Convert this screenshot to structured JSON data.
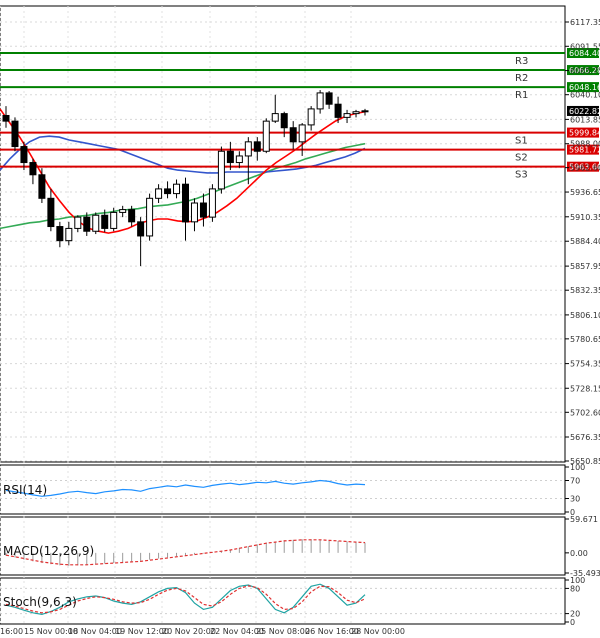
{
  "chart_data": {
    "type": "candlestick",
    "price_ticks": [
      "6117.35",
      "6091.55",
      "6065.75",
      "6040.10",
      "6013.85",
      "5988.00",
      "5962.60",
      "5936.65",
      "5910.35",
      "5884.40",
      "5857.95",
      "5832.35",
      "5806.10",
      "5780.65",
      "5754.35",
      "5728.15",
      "5702.60",
      "5676.35",
      "5650.85"
    ],
    "ylim": [
      5650.85,
      6117.35
    ],
    "time_labels": [
      "16:00",
      "15 Nov 00:00",
      "18 Nov 04:00",
      "19 Nov 12:00",
      "20 Nov 20:00",
      "22 Nov 04:00",
      "25 Nov 08:00",
      "26 Nov 16:00",
      "28 Nov 00:00"
    ],
    "levels": [
      {
        "name": "R3",
        "value": 6084.4,
        "label": "6084.40",
        "color": "#008000"
      },
      {
        "name": "R2",
        "value": 6066.28,
        "label": "6066.28",
        "color": "#008000"
      },
      {
        "name": "R1",
        "value": 6048.16,
        "label": "6048.16",
        "color": "#008000"
      },
      {
        "name": "S1",
        "value": 5999.84,
        "label": "5999.84",
        "color": "#d90000"
      },
      {
        "name": "S2",
        "value": 5981.72,
        "label": "5981.72",
        "color": "#d90000"
      },
      {
        "name": "S3",
        "value": 5963.6,
        "label": "5963.60",
        "color": "#d90000"
      }
    ],
    "current_price": {
      "value": 6022.82,
      "label": "6022.82"
    },
    "ma_colors": {
      "fast": "#ff0000",
      "mid": "#3355cc",
      "slow": "#33aa55"
    },
    "ma_fast": [
      6025,
      6010,
      5995,
      5978,
      5960,
      5942,
      5928,
      5915,
      5905,
      5898,
      5895,
      5893,
      5895,
      5898,
      5903,
      5906,
      5908,
      5908,
      5906,
      5905,
      5906,
      5910,
      5915,
      5922,
      5930,
      5940,
      5950,
      5960,
      5968,
      5975,
      5982,
      5990,
      5998,
      6005,
      6012,
      6017,
      6020,
      6022
    ],
    "ma_mid": [
      5960,
      5972,
      5982,
      5990,
      5995,
      5996,
      5995,
      5992,
      5990,
      5988,
      5986,
      5984,
      5982,
      5978,
      5974,
      5970,
      5966,
      5962,
      5960,
      5959,
      5958,
      5957,
      5957,
      5958,
      5958,
      5958,
      5958,
      5958,
      5959,
      5960,
      5961,
      5963,
      5965,
      5968,
      5971,
      5974,
      5978,
      5983
    ],
    "ma_slow": [
      5898,
      5900,
      5902,
      5904,
      5905,
      5907,
      5908,
      5910,
      5911,
      5912,
      5914,
      5915,
      5917,
      5918,
      5919,
      5921,
      5922,
      5923,
      5925,
      5927,
      5930,
      5934,
      5938,
      5942,
      5946,
      5950,
      5954,
      5958,
      5962,
      5965,
      5968,
      5972,
      5975,
      5978,
      5981,
      5984,
      5986,
      5988
    ],
    "candles": [
      {
        "o": 6018,
        "h": 6028,
        "c": 6012,
        "l": 6005
      },
      {
        "o": 6012,
        "h": 6016,
        "c": 5985,
        "l": 5980
      },
      {
        "o": 5985,
        "h": 5990,
        "c": 5968,
        "l": 5960
      },
      {
        "o": 5968,
        "h": 5972,
        "c": 5955,
        "l": 5945
      },
      {
        "o": 5955,
        "h": 5962,
        "c": 5930,
        "l": 5925
      },
      {
        "o": 5930,
        "h": 5940,
        "c": 5900,
        "l": 5895
      },
      {
        "o": 5900,
        "h": 5905,
        "c": 5885,
        "l": 5878
      },
      {
        "o": 5885,
        "h": 5905,
        "c": 5898,
        "l": 5880
      },
      {
        "o": 5898,
        "h": 5912,
        "c": 5910,
        "l": 5894
      },
      {
        "o": 5910,
        "h": 5915,
        "c": 5895,
        "l": 5890
      },
      {
        "o": 5895,
        "h": 5915,
        "c": 5912,
        "l": 5892
      },
      {
        "o": 5912,
        "h": 5918,
        "c": 5898,
        "l": 5894
      },
      {
        "o": 5898,
        "h": 5920,
        "c": 5915,
        "l": 5895
      },
      {
        "o": 5915,
        "h": 5922,
        "c": 5918,
        "l": 5910
      },
      {
        "o": 5918,
        "h": 5922,
        "c": 5905,
        "l": 5900
      },
      {
        "o": 5905,
        "h": 5910,
        "c": 5890,
        "l": 5858
      },
      {
        "o": 5890,
        "h": 5935,
        "c": 5930,
        "l": 5885
      },
      {
        "o": 5930,
        "h": 5945,
        "c": 5940,
        "l": 5925
      },
      {
        "o": 5940,
        "h": 5948,
        "c": 5935,
        "l": 5930
      },
      {
        "o": 5935,
        "h": 5950,
        "c": 5945,
        "l": 5930
      },
      {
        "o": 5945,
        "h": 5952,
        "c": 5905,
        "l": 5885
      },
      {
        "o": 5905,
        "h": 5930,
        "c": 5925,
        "l": 5895
      },
      {
        "o": 5925,
        "h": 5935,
        "c": 5910,
        "l": 5900
      },
      {
        "o": 5910,
        "h": 5945,
        "c": 5940,
        "l": 5905
      },
      {
        "o": 5940,
        "h": 5985,
        "c": 5980,
        "l": 5935
      },
      {
        "o": 5980,
        "h": 5990,
        "c": 5968,
        "l": 5960
      },
      {
        "o": 5968,
        "h": 5980,
        "c": 5975,
        "l": 5962
      },
      {
        "o": 5975,
        "h": 5995,
        "c": 5990,
        "l": 5945
      },
      {
        "o": 5990,
        "h": 5995,
        "c": 5980,
        "l": 5970
      },
      {
        "o": 5980,
        "h": 6015,
        "c": 6012,
        "l": 5978
      },
      {
        "o": 6012,
        "h": 6040,
        "c": 6020,
        "l": 6010
      },
      {
        "o": 6020,
        "h": 6022,
        "c": 6005,
        "l": 5995
      },
      {
        "o": 6005,
        "h": 6012,
        "c": 5990,
        "l": 5982
      },
      {
        "o": 5990,
        "h": 6010,
        "c": 6008,
        "l": 5975
      },
      {
        "o": 6008,
        "h": 6028,
        "c": 6025,
        "l": 6002
      },
      {
        "o": 6025,
        "h": 6045,
        "c": 6042,
        "l": 6020
      },
      {
        "o": 6042,
        "h": 6044,
        "c": 6030,
        "l": 6025
      },
      {
        "o": 6030,
        "h": 6038,
        "c": 6016,
        "l": 6010
      },
      {
        "o": 6016,
        "h": 6024,
        "c": 6020,
        "l": 6010
      },
      {
        "o": 6020,
        "h": 6024,
        "c": 6022,
        "l": 6016
      },
      {
        "o": 6022,
        "h": 6025,
        "c": 6023,
        "l": 6018
      }
    ],
    "rsi": {
      "label": "RSI(14)",
      "ticks": [
        "100",
        "70",
        "30",
        "0"
      ],
      "values": [
        48,
        45,
        42,
        38,
        35,
        37,
        40,
        44,
        46,
        43,
        41,
        45,
        47,
        50,
        49,
        46,
        52,
        55,
        58,
        56,
        60,
        57,
        55,
        59,
        62,
        64,
        61,
        63,
        66,
        65,
        68,
        64,
        62,
        65,
        67,
        70,
        68,
        63,
        60,
        62,
        61
      ]
    },
    "macd": {
      "label": "MACD(12,26,9)",
      "ticks": [
        "59.671",
        "0.00",
        "-35.493"
      ],
      "hist": [
        -5,
        -8,
        -12,
        -15,
        -18,
        -20,
        -22,
        -23,
        -22,
        -21,
        -20,
        -19,
        -18,
        -17,
        -15,
        -14,
        -12,
        -10,
        -8,
        -6,
        -5,
        -3,
        -1,
        1,
        3,
        6,
        9,
        12,
        15,
        18,
        20,
        22,
        23,
        24,
        24,
        23,
        22,
        21,
        20,
        19,
        18
      ],
      "signal": [
        -4,
        -7,
        -10,
        -13,
        -16,
        -18,
        -20,
        -21,
        -21,
        -21,
        -20,
        -19,
        -18,
        -17,
        -16,
        -15,
        -13,
        -11,
        -9,
        -7,
        -5,
        -3,
        -1,
        1,
        3,
        5,
        8,
        11,
        14,
        17,
        19,
        21,
        22,
        23,
        23,
        23,
        22,
        21,
        20,
        19,
        18
      ]
    },
    "stoch": {
      "label": "Stoch(9,6,3)",
      "ticks": [
        "100",
        "80",
        "20",
        "0"
      ],
      "k": [
        40,
        35,
        28,
        22,
        18,
        25,
        35,
        48,
        55,
        60,
        62,
        58,
        50,
        45,
        42,
        48,
        60,
        72,
        80,
        82,
        70,
        45,
        30,
        35,
        55,
        75,
        85,
        88,
        80,
        55,
        30,
        22,
        35,
        60,
        85,
        90,
        80,
        60,
        40,
        45,
        65
      ],
      "d": [
        42,
        38,
        32,
        26,
        22,
        24,
        30,
        40,
        50,
        56,
        60,
        58,
        54,
        48,
        45,
        46,
        54,
        66,
        76,
        80,
        74,
        58,
        42,
        38,
        48,
        66,
        80,
        86,
        82,
        66,
        44,
        30,
        32,
        48,
        72,
        85,
        84,
        70,
        52,
        46,
        55
      ]
    }
  }
}
